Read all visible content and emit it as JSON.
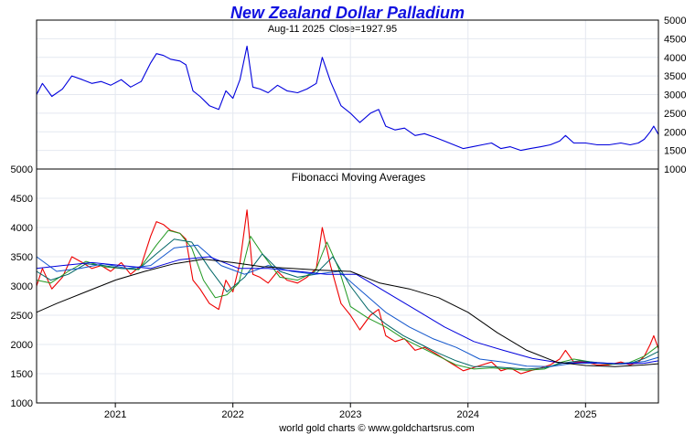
{
  "chart_data": {
    "type": "line",
    "title": "New Zealand Dollar Palladium",
    "subtitle_date": "Aug-11  2025",
    "subtitle_close": "Close=1927.95",
    "footer": "world gold charts © www.goldchartsrus.com",
    "x_range": [
      2020.33,
      2025.62
    ],
    "year_ticks": [
      "2021",
      "2022",
      "2023",
      "2024",
      "2025"
    ],
    "top_panel": {
      "ylim": [
        1000,
        5000
      ],
      "y_ticks": [
        "5000",
        "4500",
        "4000",
        "3500",
        "3000",
        "2500",
        "2000",
        "1500",
        "1000"
      ],
      "series": [
        {
          "color": "#0000dd",
          "x": [
            2020.33,
            2020.38,
            2020.46,
            2020.55,
            2020.63,
            2020.72,
            2020.8,
            2020.88,
            2020.96,
            2021.05,
            2021.13,
            2021.22,
            2021.3,
            2021.35,
            2021.41,
            2021.47,
            2021.55,
            2021.6,
            2021.66,
            2021.72,
            2021.8,
            2021.88,
            2021.94,
            2022.0,
            2022.06,
            2022.12,
            2022.17,
            2022.23,
            2022.3,
            2022.38,
            2022.46,
            2022.55,
            2022.63,
            2022.71,
            2022.76,
            2022.83,
            2022.92,
            2023.0,
            2023.08,
            2023.17,
            2023.24,
            2023.3,
            2023.38,
            2023.46,
            2023.55,
            2023.63,
            2023.72,
            2023.8,
            2023.88,
            2023.96,
            2024.04,
            2024.12,
            2024.2,
            2024.28,
            2024.36,
            2024.45,
            2024.53,
            2024.62,
            2024.7,
            2024.78,
            2024.83,
            2024.9,
            2025.0,
            2025.1,
            2025.2,
            2025.3,
            2025.38,
            2025.45,
            2025.5,
            2025.55,
            2025.58,
            2025.62
          ],
          "y": [
            3000,
            3300,
            2950,
            3150,
            3500,
            3400,
            3300,
            3350,
            3250,
            3400,
            3200,
            3350,
            3850,
            4100,
            4050,
            3950,
            3900,
            3800,
            3100,
            2950,
            2700,
            2600,
            3100,
            2900,
            3400,
            4300,
            3200,
            3150,
            3050,
            3250,
            3100,
            3050,
            3150,
            3300,
            4000,
            3350,
            2700,
            2500,
            2250,
            2500,
            2600,
            2150,
            2050,
            2100,
            1900,
            1950,
            1850,
            1750,
            1650,
            1550,
            1600,
            1650,
            1700,
            1550,
            1600,
            1500,
            1550,
            1600,
            1650,
            1750,
            1900,
            1700,
            1700,
            1650,
            1650,
            1700,
            1650,
            1700,
            1800,
            2000,
            2150,
            1928
          ]
        }
      ]
    },
    "bottom_panel": {
      "title": "Fibonacci Moving Averages",
      "ylim": [
        1000,
        5000
      ],
      "y_ticks": [
        "5000",
        "4500",
        "4000",
        "3500",
        "3000",
        "2500",
        "2000",
        "1500",
        "1000"
      ],
      "series": [
        {
          "color": "#ee0000",
          "x": [
            2020.33,
            2020.38,
            2020.46,
            2020.55,
            2020.63,
            2020.72,
            2020.8,
            2020.88,
            2020.96,
            2021.05,
            2021.13,
            2021.22,
            2021.3,
            2021.35,
            2021.41,
            2021.47,
            2021.55,
            2021.6,
            2021.66,
            2021.72,
            2021.8,
            2021.88,
            2021.94,
            2022.0,
            2022.06,
            2022.12,
            2022.17,
            2022.23,
            2022.3,
            2022.38,
            2022.46,
            2022.55,
            2022.63,
            2022.71,
            2022.76,
            2022.83,
            2022.92,
            2023.0,
            2023.08,
            2023.17,
            2023.24,
            2023.3,
            2023.38,
            2023.46,
            2023.55,
            2023.63,
            2023.72,
            2023.8,
            2023.88,
            2023.96,
            2024.04,
            2024.12,
            2024.2,
            2024.28,
            2024.36,
            2024.45,
            2024.53,
            2024.62,
            2024.7,
            2024.78,
            2024.83,
            2024.9,
            2025.0,
            2025.1,
            2025.2,
            2025.3,
            2025.38,
            2025.45,
            2025.5,
            2025.55,
            2025.58,
            2025.62
          ],
          "y": [
            3000,
            3300,
            2950,
            3150,
            3500,
            3400,
            3300,
            3350,
            3250,
            3400,
            3200,
            3350,
            3850,
            4100,
            4050,
            3950,
            3900,
            3800,
            3100,
            2950,
            2700,
            2600,
            3100,
            2900,
            3400,
            4300,
            3200,
            3150,
            3050,
            3250,
            3100,
            3050,
            3150,
            3300,
            4000,
            3350,
            2700,
            2500,
            2250,
            2500,
            2600,
            2150,
            2050,
            2100,
            1900,
            1950,
            1850,
            1750,
            1650,
            1550,
            1600,
            1650,
            1700,
            1550,
            1600,
            1500,
            1550,
            1600,
            1650,
            1750,
            1900,
            1700,
            1700,
            1650,
            1650,
            1700,
            1650,
            1700,
            1800,
            2000,
            2150,
            1928
          ]
        },
        {
          "color": "#229922",
          "x": [
            2020.33,
            2020.45,
            2020.6,
            2020.75,
            2020.9,
            2021.05,
            2021.2,
            2021.35,
            2021.45,
            2021.55,
            2021.65,
            2021.75,
            2021.85,
            2021.95,
            2022.05,
            2022.15,
            2022.25,
            2022.4,
            2022.55,
            2022.7,
            2022.8,
            2022.9,
            2023.0,
            2023.15,
            2023.3,
            2023.45,
            2023.6,
            2023.75,
            2023.9,
            2024.05,
            2024.2,
            2024.35,
            2024.5,
            2024.65,
            2024.8,
            2024.9,
            2025.05,
            2025.2,
            2025.35,
            2025.5,
            2025.62
          ],
          "y": [
            3100,
            3050,
            3250,
            3420,
            3330,
            3300,
            3280,
            3700,
            3950,
            3900,
            3650,
            3100,
            2800,
            2850,
            3050,
            3850,
            3550,
            3150,
            3100,
            3250,
            3750,
            3300,
            2650,
            2450,
            2300,
            2100,
            1950,
            1800,
            1650,
            1580,
            1600,
            1580,
            1560,
            1580,
            1700,
            1750,
            1700,
            1660,
            1670,
            1800,
            1980
          ]
        },
        {
          "color": "#006666",
          "x": [
            2020.33,
            2020.45,
            2020.6,
            2020.75,
            2020.9,
            2021.05,
            2021.2,
            2021.35,
            2021.5,
            2021.65,
            2021.8,
            2021.95,
            2022.1,
            2022.25,
            2022.4,
            2022.55,
            2022.7,
            2022.85,
            2023.0,
            2023.15,
            2023.3,
            2023.45,
            2023.6,
            2023.75,
            2023.9,
            2024.05,
            2024.2,
            2024.35,
            2024.5,
            2024.65,
            2024.8,
            2024.95,
            2025.1,
            2025.25,
            2025.4,
            2025.5,
            2025.62
          ],
          "y": [
            3250,
            3100,
            3200,
            3380,
            3350,
            3300,
            3290,
            3550,
            3800,
            3750,
            3300,
            2900,
            3150,
            3550,
            3250,
            3150,
            3200,
            3500,
            3000,
            2600,
            2350,
            2150,
            2000,
            1850,
            1720,
            1620,
            1620,
            1600,
            1580,
            1600,
            1680,
            1720,
            1690,
            1670,
            1690,
            1760,
            1880
          ]
        },
        {
          "color": "#1155cc",
          "x": [
            2020.33,
            2020.5,
            2020.7,
            2020.9,
            2021.1,
            2021.3,
            2021.5,
            2021.7,
            2021.9,
            2022.1,
            2022.3,
            2022.5,
            2022.7,
            2022.9,
            2023.1,
            2023.3,
            2023.5,
            2023.7,
            2023.9,
            2024.1,
            2024.3,
            2024.5,
            2024.7,
            2024.9,
            2025.1,
            2025.3,
            2025.5,
            2025.62
          ],
          "y": [
            3500,
            3250,
            3300,
            3380,
            3300,
            3350,
            3650,
            3700,
            3350,
            3200,
            3350,
            3250,
            3200,
            3250,
            2900,
            2550,
            2300,
            2100,
            1950,
            1750,
            1700,
            1630,
            1620,
            1680,
            1680,
            1670,
            1710,
            1780
          ]
        },
        {
          "color": "#0000dd",
          "x": [
            2020.33,
            2020.55,
            2020.8,
            2021.05,
            2021.3,
            2021.55,
            2021.8,
            2022.05,
            2022.3,
            2022.55,
            2022.8,
            2023.05,
            2023.3,
            2023.55,
            2023.8,
            2024.05,
            2024.3,
            2024.55,
            2024.8,
            2025.05,
            2025.3,
            2025.5,
            2025.62
          ],
          "y": [
            3300,
            3350,
            3400,
            3350,
            3300,
            3450,
            3500,
            3300,
            3300,
            3250,
            3200,
            3200,
            2900,
            2600,
            2300,
            2050,
            1900,
            1760,
            1680,
            1690,
            1670,
            1680,
            1720
          ]
        },
        {
          "color": "#000000",
          "x": [
            2020.33,
            2020.5,
            2020.75,
            2021.0,
            2021.25,
            2021.5,
            2021.75,
            2022.0,
            2022.25,
            2022.5,
            2022.75,
            2023.0,
            2023.25,
            2023.5,
            2023.75,
            2024.0,
            2024.25,
            2024.5,
            2024.75,
            2025.0,
            2025.25,
            2025.5,
            2025.62
          ],
          "y": [
            2550,
            2700,
            2900,
            3100,
            3250,
            3380,
            3460,
            3400,
            3330,
            3300,
            3270,
            3250,
            3050,
            2950,
            2800,
            2550,
            2200,
            1900,
            1700,
            1640,
            1620,
            1650,
            1670
          ]
        }
      ]
    }
  }
}
